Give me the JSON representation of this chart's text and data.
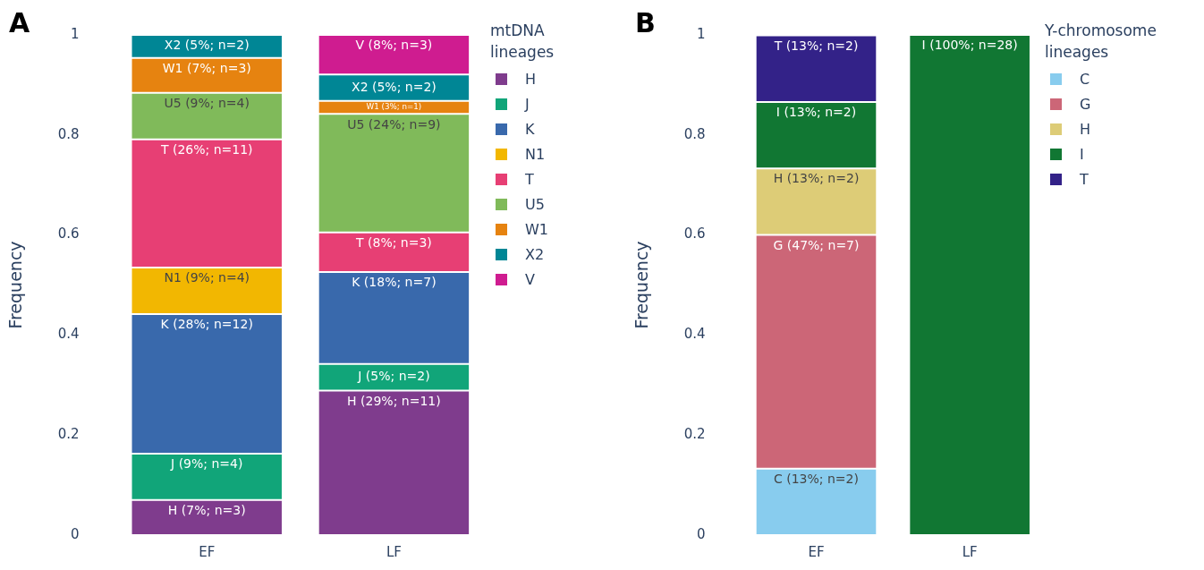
{
  "chart_data": [
    {
      "type": "bar",
      "stacked": true,
      "categories": [
        "EF",
        "LF"
      ],
      "ylabel": "Frequency",
      "legend_title": "mtDNA lineages",
      "legend": "right",
      "grid": false,
      "ylim": [
        0,
        1
      ],
      "yticks": [
        0,
        0.2,
        0.4,
        0.6,
        0.8,
        1
      ],
      "annotations": [
        "A"
      ],
      "series": [
        {
          "name": "H",
          "color": "#7f3c8d",
          "values": [
            0.07,
            0.289
          ],
          "value_labels": [
            "H (7%; n=3)",
            "H (29%; n=11)"
          ]
        },
        {
          "name": "J",
          "color": "#11a579",
          "values": [
            0.093,
            0.053
          ],
          "value_labels": [
            "J (9%; n=4)",
            "J (5%; n=2)"
          ]
        },
        {
          "name": "K",
          "color": "#3969ac",
          "values": [
            0.279,
            0.184
          ],
          "value_labels": [
            "K (28%; n=12)",
            "K (18%; n=7)"
          ]
        },
        {
          "name": "N1",
          "color": "#f2b701",
          "values": [
            0.093,
            null
          ],
          "value_labels": [
            "N1 (9%; n=4)",
            null
          ]
        },
        {
          "name": "T",
          "color": "#e73f74",
          "values": [
            0.256,
            0.079
          ],
          "value_labels": [
            "T (26%; n=11)",
            "T (8%; n=3)"
          ]
        },
        {
          "name": "U5",
          "color": "#80ba5a",
          "values": [
            0.093,
            0.237
          ],
          "value_labels": [
            "U5 (9%; n=4)",
            "U5 (24%; n=9)"
          ]
        },
        {
          "name": "W1",
          "color": "#e68310",
          "values": [
            0.07,
            0.026
          ],
          "value_labels": [
            "W1 (7%; n=3)",
            "W1 (3%; n=1)"
          ]
        },
        {
          "name": "X2",
          "color": "#008695",
          "values": [
            0.046,
            0.053
          ],
          "value_labels": [
            "X2 (5%; n=2)",
            "X2 (5%; n=2)"
          ]
        },
        {
          "name": "V",
          "color": "#cf1c90",
          "values": [
            null,
            0.079
          ],
          "value_labels": [
            null,
            "V (8%; n=3)"
          ]
        }
      ]
    },
    {
      "type": "bar",
      "stacked": true,
      "categories": [
        "EF",
        "LF"
      ],
      "ylabel": "Frequency",
      "legend_title": "Y-chromosome lineages",
      "legend": "right",
      "grid": false,
      "ylim": [
        0,
        1
      ],
      "yticks": [
        0,
        0.2,
        0.4,
        0.6,
        0.8,
        1
      ],
      "annotations": [
        "B"
      ],
      "series": [
        {
          "name": "C",
          "color": "#88ccee",
          "values": [
            0.133,
            null
          ],
          "value_labels": [
            "C (13%; n=2)",
            null
          ]
        },
        {
          "name": "G",
          "color": "#cc6677",
          "values": [
            0.467,
            null
          ],
          "value_labels": [
            "G (47%; n=7)",
            null
          ]
        },
        {
          "name": "H",
          "color": "#ddcc77",
          "values": [
            0.133,
            null
          ],
          "value_labels": [
            "H (13%; n=2)",
            null
          ]
        },
        {
          "name": "I",
          "color": "#117733",
          "values": [
            0.133,
            1
          ],
          "value_labels": [
            "I (13%; n=2)",
            "I (100%; n=28)"
          ]
        },
        {
          "name": "T",
          "color": "#332288",
          "values": [
            0.133,
            null
          ],
          "value_labels": [
            "T (13%; n=2)",
            null
          ]
        }
      ]
    }
  ]
}
